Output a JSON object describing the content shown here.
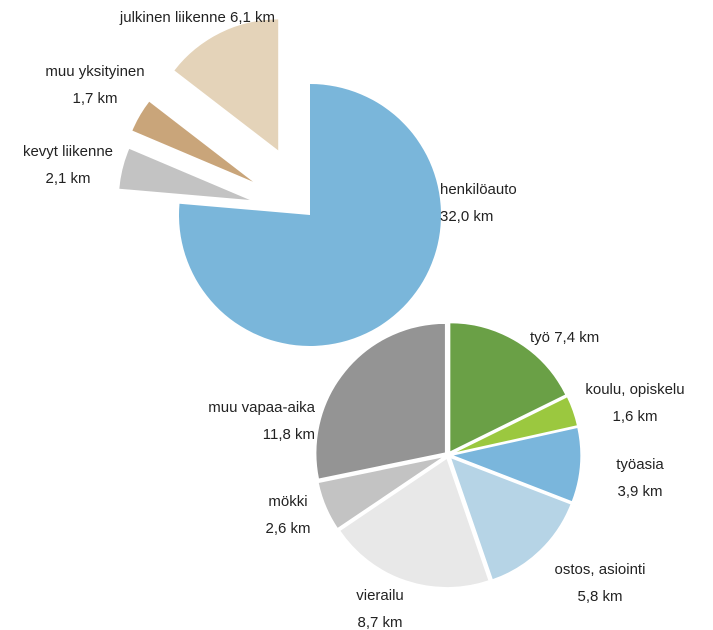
{
  "chart_data": [
    {
      "type": "pie",
      "categories": [
        "henkilöauto",
        "kevyt liikenne",
        "muu yksityinen",
        "julkinen liikenne"
      ],
      "values": [
        32.0,
        2.1,
        1.7,
        6.1
      ],
      "value_labels": [
        "32,0 km",
        "2,1 km",
        "1,7 km",
        "6,1 km"
      ],
      "colors": [
        "#7ab6da",
        "#c3c3c3",
        "#c9a57a",
        "#e4d3b9"
      ]
    },
    {
      "type": "pie",
      "categories": [
        "työ",
        "koulu, opiskelu",
        "työasia",
        "ostos, asiointi",
        "vierailu",
        "mökki",
        "muu vapaa-aika"
      ],
      "values": [
        7.4,
        1.6,
        3.9,
        5.8,
        8.7,
        2.6,
        11.8
      ],
      "value_labels": [
        "7,4 km",
        "1,6 km",
        "3,9 km",
        "5,8 km",
        "8,7 km",
        "2,6 km",
        "11,8 km"
      ],
      "colors": [
        "#6aa046",
        "#9bc83f",
        "#7ab6dc",
        "#b6d4e6",
        "#e8e8e8",
        "#c3c3c3",
        "#949494"
      ]
    }
  ]
}
